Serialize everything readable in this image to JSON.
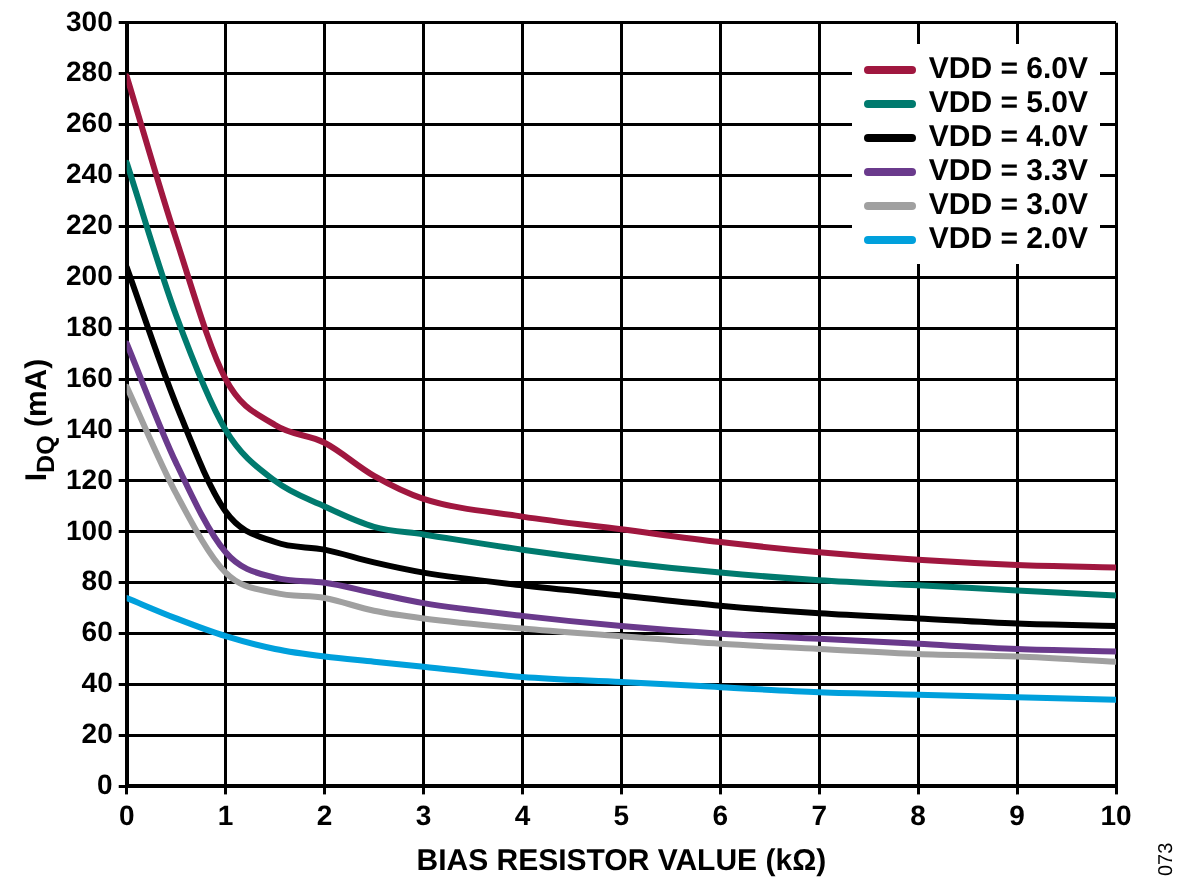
{
  "chart_data": {
    "type": "line",
    "xlabel": "BIAS RESISTOR VALUE (kΩ)",
    "ylabel": "I$_{DQ}$ (mA)",
    "annotations": [
      "073"
    ],
    "x": [
      0,
      0.5,
      1,
      1.5,
      2,
      2.5,
      3,
      4,
      5,
      6,
      7,
      8,
      9,
      10
    ],
    "xlim": [
      0,
      10
    ],
    "xticks": [
      0,
      1,
      2,
      3,
      4,
      5,
      6,
      7,
      8,
      9,
      10
    ],
    "ylim": [
      0,
      300
    ],
    "yticks": [
      0,
      20,
      40,
      60,
      80,
      100,
      120,
      140,
      160,
      180,
      200,
      220,
      240,
      260,
      280,
      300
    ],
    "grid": true,
    "legend": "top right",
    "marker": "none",
    "line_style": "solid",
    "series": [
      {
        "name": "VDD = 6.0V",
        "color": "#a0173f",
        "values": [
          279,
          215,
          160,
          142,
          135,
          122,
          113,
          106,
          101,
          96,
          92,
          89,
          87,
          86
        ]
      },
      {
        "name": "VDD = 5.0V",
        "color": "#007a6e",
        "values": [
          245,
          185,
          140,
          120,
          110,
          102,
          99,
          93,
          88,
          84,
          81,
          79,
          77,
          75
        ]
      },
      {
        "name": "VDD = 4.0V",
        "color": "#000000",
        "values": [
          204,
          150,
          108,
          96,
          93,
          88,
          84,
          79,
          75,
          71,
          68,
          66,
          64,
          63
        ]
      },
      {
        "name": "VDD = 3.3V",
        "color": "#6a3a8c",
        "values": [
          174,
          127,
          92,
          82,
          80,
          76,
          72,
          67,
          63,
          60,
          58,
          56,
          54,
          53
        ]
      },
      {
        "name": "VDD = 3.0V",
        "color": "#a0a0a0",
        "values": [
          157,
          115,
          84,
          76,
          74,
          69,
          66,
          62,
          59,
          56,
          54,
          52,
          51,
          49
        ]
      },
      {
        "name": "VDD = 2.0V",
        "color": "#00a0dc",
        "values": [
          74,
          66,
          59,
          54,
          51,
          49,
          47,
          43,
          41,
          39,
          37,
          36,
          35,
          34
        ]
      }
    ]
  }
}
